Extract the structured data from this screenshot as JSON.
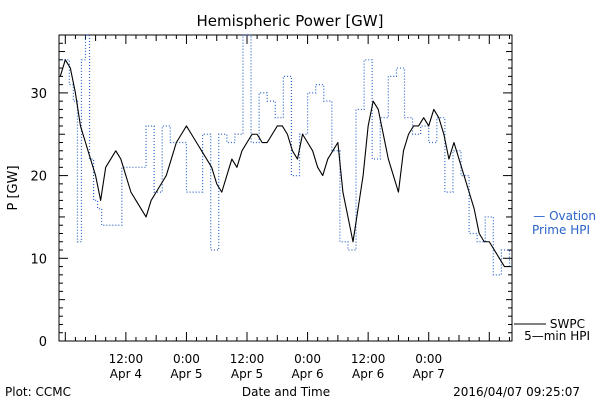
{
  "chart_data": {
    "type": "line",
    "title": "Hemispheric Power [GW]",
    "ylabel": "P [GW]",
    "xlabel": "Date and Time",
    "ylim": [
      0,
      37
    ],
    "xlim": [
      -1.25,
      88.5
    ],
    "yticks": [
      0,
      10,
      20,
      30
    ],
    "x_unit": "hours since 2016-04-04 00:00 UT",
    "xticks": [
      {
        "x": 12,
        "time": "12:00",
        "date": "Apr 4"
      },
      {
        "x": 24,
        "time": "0:00",
        "date": "Apr 5"
      },
      {
        "x": 36,
        "time": "12:00",
        "date": "Apr 5"
      },
      {
        "x": 48,
        "time": "0:00",
        "date": "Apr 6"
      },
      {
        "x": 60,
        "time": "12:00",
        "date": "Apr 6"
      },
      {
        "x": 72,
        "time": "0:00",
        "date": "Apr 7"
      }
    ],
    "series": [
      {
        "name": "Ovation Prime HPI",
        "label_line1": "— Ovation",
        "label_line2": "Prime HPI",
        "color": "#2a62c9",
        "style": "dotted-step",
        "x": [
          -0.8,
          0.8,
          1.6,
          2.4,
          3.2,
          4.0,
          4.8,
          5.6,
          6.4,
          7.2,
          8.0,
          9.6,
          11.2,
          12.8,
          14.4,
          16.0,
          17.6,
          19.2,
          20.8,
          22.4,
          24.0,
          25.6,
          27.2,
          28.8,
          30.4,
          32.0,
          33.6,
          35.2,
          36.8,
          38.4,
          40.0,
          41.6,
          43.2,
          44.8,
          46.4,
          48.0,
          49.6,
          51.2,
          52.8,
          54.4,
          56.0,
          57.6,
          59.2,
          60.8,
          62.4,
          64.0,
          65.6,
          67.2,
          68.8,
          70.4,
          72.0,
          73.6,
          75.2,
          76.8,
          78.4,
          80.0,
          81.6,
          83.2,
          84.8,
          86.4,
          88.0
        ],
        "y": [
          34,
          31,
          29,
          12,
          34,
          37,
          22,
          17,
          16,
          14,
          14,
          14,
          21,
          21,
          21,
          26,
          18,
          26,
          24,
          24,
          18,
          18,
          25,
          11,
          25,
          24,
          25,
          37,
          24,
          30,
          29,
          27,
          32,
          20,
          25,
          30,
          31,
          29,
          23,
          12,
          11,
          28,
          34,
          22,
          27,
          32,
          33,
          27,
          25,
          26,
          24,
          27,
          18,
          23,
          20,
          13,
          12,
          15,
          8,
          11,
          9
        ]
      },
      {
        "name": "SWPC 5-min HPI",
        "label_line1": "SWPC",
        "label_line2": "5—min HPI",
        "color": "#000000",
        "style": "solid",
        "x": [
          -1.0,
          0.0,
          1.0,
          2.0,
          3.0,
          4.0,
          5.0,
          6.0,
          7.0,
          8.0,
          9.0,
          10.0,
          11.0,
          12.0,
          13.0,
          14.0,
          15.0,
          16.0,
          17.0,
          18.0,
          19.0,
          20.0,
          21.0,
          22.0,
          23.0,
          24.0,
          25.0,
          26.0,
          27.0,
          28.0,
          29.0,
          30.0,
          31.0,
          32.0,
          33.0,
          34.0,
          35.0,
          36.0,
          37.0,
          38.0,
          39.0,
          40.0,
          41.0,
          42.0,
          43.0,
          44.0,
          45.0,
          46.0,
          47.0,
          48.0,
          49.0,
          50.0,
          51.0,
          52.0,
          53.0,
          54.0,
          55.0,
          56.0,
          57.0,
          58.0,
          59.0,
          60.0,
          61.0,
          62.0,
          63.0,
          64.0,
          65.0,
          66.0,
          67.0,
          68.0,
          69.0,
          70.0,
          71.0,
          72.0,
          73.0,
          74.0,
          75.0,
          76.0,
          77.0,
          78.0,
          79.0,
          80.0,
          81.0,
          82.0,
          83.0,
          84.0,
          85.0,
          86.0,
          87.0,
          88.0
        ],
        "y": [
          32,
          34,
          33,
          30,
          26,
          24,
          22,
          20,
          17,
          21,
          22,
          23,
          22,
          20,
          18,
          17,
          16,
          15,
          17,
          18,
          19,
          20,
          22,
          24,
          25,
          26,
          25,
          24,
          23,
          22,
          21,
          19,
          18,
          20,
          22,
          21,
          23,
          24,
          25,
          25,
          24,
          24,
          25,
          26,
          26,
          25,
          23,
          22,
          25,
          24,
          23,
          21,
          20,
          22,
          23,
          24,
          18,
          15,
          12,
          16,
          20,
          26,
          29,
          28,
          25,
          22,
          20,
          18,
          23,
          25,
          26,
          26,
          27,
          26,
          28,
          27,
          25,
          22,
          24,
          22,
          20,
          18,
          16,
          13,
          12,
          12,
          11,
          10,
          9,
          9
        ]
      }
    ]
  },
  "footer": {
    "left": "Plot: CCMC",
    "right": "2016/04/07 09:25:07"
  }
}
